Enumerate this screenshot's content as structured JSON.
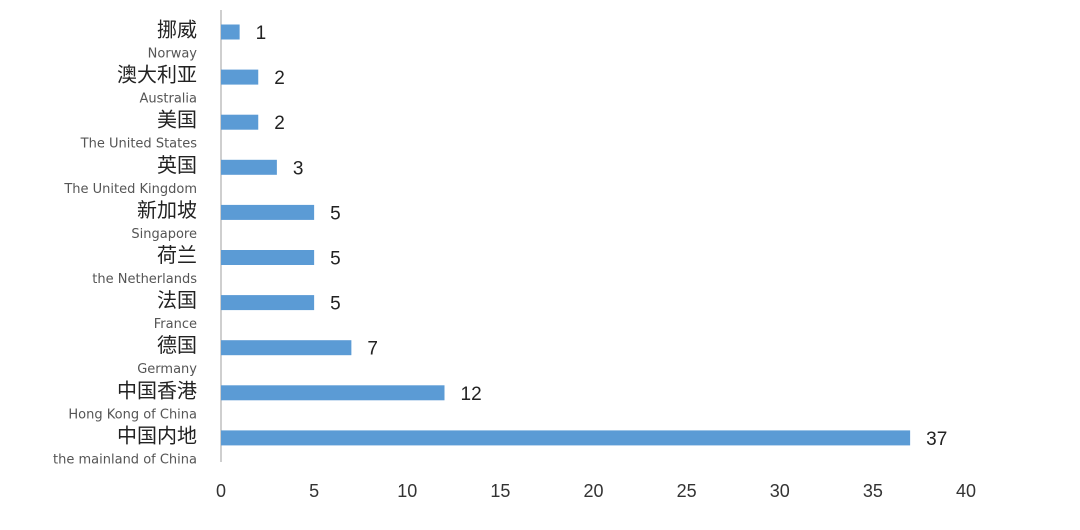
{
  "chart_data": {
    "type": "hbar",
    "color": "#5b9bd5",
    "categories": [
      {
        "zh": "挪威",
        "en": "Norway"
      },
      {
        "zh": "澳大利亚",
        "en": "Australia"
      },
      {
        "zh": "美国",
        "en": "The United States"
      },
      {
        "zh": "英国",
        "en": "The United Kingdom"
      },
      {
        "zh": "新加坡",
        "en": "Singapore"
      },
      {
        "zh": "荷兰",
        "en": "the Netherlands"
      },
      {
        "zh": "法国",
        "en": "France"
      },
      {
        "zh": "德国",
        "en": "Germany"
      },
      {
        "zh": "中国香港",
        "en": "Hong Kong of China"
      },
      {
        "zh": "中国内地",
        "en": "the mainland of China"
      }
    ],
    "values": [
      1,
      2,
      2,
      3,
      5,
      5,
      5,
      7,
      12,
      37
    ],
    "xlim": [
      0,
      40
    ],
    "xticks": [
      0,
      5,
      10,
      15,
      20,
      25,
      30,
      35,
      40
    ]
  }
}
